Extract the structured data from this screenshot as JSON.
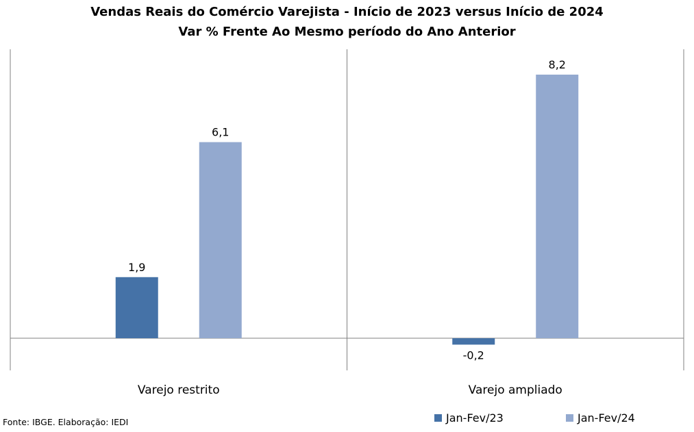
{
  "title": "Vendas Reais do Comércio Varejista - Início de 2023 versus Início de 2024",
  "subtitle": "Var % Frente Ao Mesmo período do Ano Anterior",
  "source": "Fonte: IBGE. Elaboração: IEDI",
  "colors": {
    "series1": "#4572a7",
    "series2": "#93a9cf",
    "axis": "#808080"
  },
  "chart_data": {
    "type": "bar",
    "title": "Vendas Reais do Comércio Varejista - Início de 2023 versus Início de 2024",
    "subtitle": "Var % Frente Ao Mesmo período do Ano Anterior",
    "categories": [
      "Varejo restrito",
      "Varejo ampliado"
    ],
    "series": [
      {
        "name": "Jan-Fev/23",
        "values": [
          1.9,
          -0.2
        ],
        "labels": [
          "1,9",
          "-0,2"
        ]
      },
      {
        "name": "Jan-Fev/24",
        "values": [
          6.1,
          8.2
        ],
        "labels": [
          "6,1",
          "8,2"
        ]
      }
    ],
    "ylim": [
      -2,
      10
    ],
    "grid": false,
    "legend_position": "bottom-right"
  }
}
